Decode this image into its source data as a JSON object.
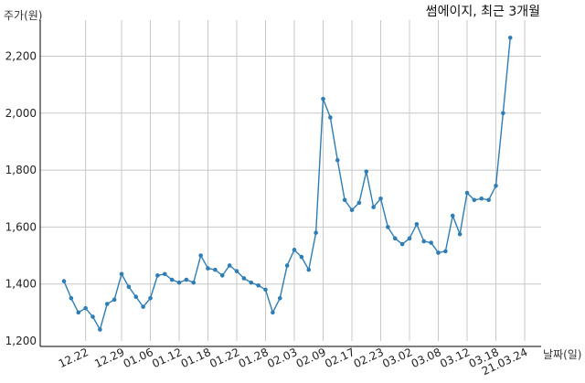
{
  "chart_data": {
    "type": "line",
    "title": "썸에이지, 최근 3개월",
    "ylabel": "주가(원)",
    "xlabel": "날짜(일)",
    "ylim": [
      1200,
      2300
    ],
    "yticks": [
      1200,
      1400,
      1600,
      1800,
      2000,
      2200
    ],
    "ytick_labels": [
      "1,200",
      "1,400",
      "1,600",
      "1,800",
      "2,000",
      "2,200"
    ],
    "xtick_labels": [
      "12.22",
      "12.29",
      "01.06",
      "01.12",
      "01.18",
      "01.22",
      "01.28",
      "02.03",
      "02.09",
      "02.17",
      "02.23",
      "03.02",
      "03.08",
      "03.12",
      "03.18",
      "21.03.24"
    ],
    "xtick_indices": [
      3,
      8,
      12,
      16,
      20,
      24,
      28,
      32,
      36,
      40,
      44,
      48,
      52,
      56,
      60,
      64
    ],
    "grid": true,
    "line_color": "#2e7db5",
    "series": [
      {
        "values": [
          1410,
          1350,
          1300,
          1315,
          1285,
          1240,
          1330,
          1345,
          1435,
          1390,
          1355,
          1320,
          1350,
          1430,
          1435,
          1415,
          1405,
          1415,
          1405,
          1500,
          1455,
          1450,
          1430,
          1465,
          1445,
          1420,
          1405,
          1395,
          1380,
          1300,
          1350,
          1465,
          1520,
          1495,
          1450,
          1580,
          2050,
          1985,
          1835,
          1695,
          1660,
          1685,
          1795,
          1670,
          1700,
          1600,
          1560,
          1540,
          1560,
          1610,
          1550,
          1545,
          1510,
          1515,
          1640,
          1575,
          1720,
          1695,
          1700,
          1695,
          1745,
          2000,
          2265
        ]
      }
    ]
  }
}
